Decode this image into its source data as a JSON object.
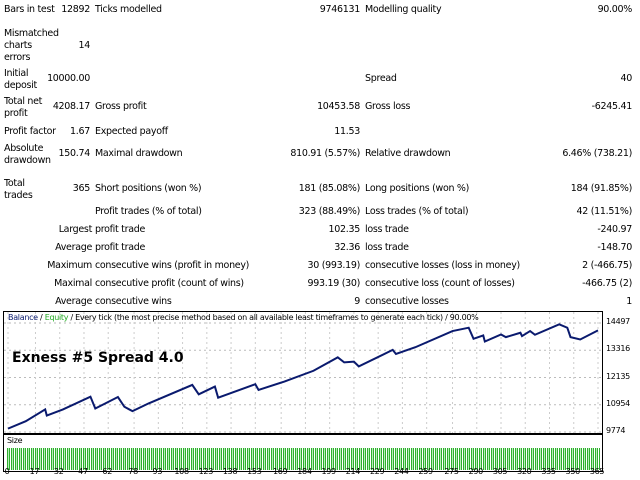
{
  "stats": {
    "bars_in_test": {
      "label": "Bars in test",
      "value": "12892"
    },
    "ticks_modelled": {
      "label": "Ticks modelled",
      "value": "9746131"
    },
    "modelling_quality": {
      "label": "Modelling quality",
      "value": "90.00%"
    },
    "mismatched": {
      "label": "Mismatched charts errors",
      "value": "14"
    },
    "initial_deposit": {
      "label": "Initial deposit",
      "value": "10000.00"
    },
    "spread": {
      "label": "Spread",
      "value": "40"
    },
    "total_net_profit": {
      "label": "Total net profit",
      "value": "4208.17"
    },
    "gross_profit": {
      "label": "Gross profit",
      "value": "10453.58"
    },
    "gross_loss": {
      "label": "Gross loss",
      "value": "-6245.41"
    },
    "profit_factor": {
      "label": "Profit factor",
      "value": "1.67"
    },
    "expected_payoff": {
      "label": "Expected payoff",
      "value": "11.53"
    },
    "absolute_drawdown": {
      "label": "Absolute drawdown",
      "value": "150.74"
    },
    "maximal_drawdown": {
      "label": "Maximal drawdown",
      "value": "810.91 (5.57%)"
    },
    "relative_drawdown": {
      "label": "Relative drawdown",
      "value": "6.46% (738.21)"
    },
    "total_trades": {
      "label": "Total trades",
      "value": "365"
    },
    "short_positions": {
      "label": "Short positions (won %)",
      "value": "181 (85.08%)"
    },
    "long_positions": {
      "label": "Long positions (won %)",
      "value": "184 (91.85%)"
    },
    "profit_trades": {
      "label": "Profit trades (% of total)",
      "value": "323 (88.49%)"
    },
    "loss_trades": {
      "label": "Loss trades (% of total)",
      "value": "42 (11.51%)"
    },
    "largest": {
      "label": "Largest",
      "profit_label": "profit trade",
      "profit": "102.35",
      "loss_label": "loss trade",
      "loss": "-240.97"
    },
    "average": {
      "label": "Average",
      "profit_label": "profit trade",
      "profit": "32.36",
      "loss_label": "loss trade",
      "loss": "-148.70"
    },
    "maximum": {
      "label": "Maximum",
      "profit_label": "consecutive wins (profit in money)",
      "profit": "30 (993.19)",
      "loss_label": "consecutive losses (loss in money)",
      "loss": "2 (-466.75)"
    },
    "maximal": {
      "label": "Maximal",
      "profit_label": "consecutive profit (count of wins)",
      "profit": "993.19 (30)",
      "loss_label": "consecutive loss (count of losses)",
      "loss": "-466.75 (2)"
    },
    "average_consec": {
      "label": "Average",
      "profit_label": "consecutive wins",
      "profit": "9",
      "loss_label": "consecutive losses",
      "loss": "1"
    }
  },
  "chart_data": {
    "type": "line",
    "legend": {
      "balance": "Balance",
      "sep1": " / ",
      "equity": "Equity",
      "rest": " / Every tick (the most precise method based on all available least timeframes to generate each tick) / 90.00%"
    },
    "title": "Exness #5  Spread 4.0",
    "size_label": "Size",
    "colors": {
      "balance": "#0a1a6e",
      "equity": "#22aa22",
      "size": "#2fae2f"
    },
    "y_ticks": [
      "14497",
      "13316",
      "12135",
      "10954",
      "9774"
    ],
    "ylim": [
      9774,
      14497
    ],
    "x_ticks": [
      "0",
      "17",
      "32",
      "47",
      "62",
      "78",
      "93",
      "108",
      "123",
      "138",
      "153",
      "169",
      "184",
      "199",
      "214",
      "229",
      "244",
      "259",
      "275",
      "290",
      "305",
      "320",
      "335",
      "350",
      "365"
    ],
    "xlim": [
      0,
      365
    ],
    "series": [
      {
        "name": "Balance",
        "points": [
          [
            0,
            9920
          ],
          [
            11,
            10241
          ],
          [
            23,
            10751
          ],
          [
            24,
            10488
          ],
          [
            34,
            10751
          ],
          [
            51,
            11305
          ],
          [
            54,
            10794
          ],
          [
            68,
            11290
          ],
          [
            72,
            10867
          ],
          [
            77,
            10678
          ],
          [
            87,
            11013
          ],
          [
            114,
            11815
          ],
          [
            118,
            11407
          ],
          [
            128,
            11742
          ],
          [
            130,
            11261
          ],
          [
            153,
            11844
          ],
          [
            155,
            11596
          ],
          [
            171,
            11961
          ],
          [
            189,
            12427
          ],
          [
            204,
            13010
          ],
          [
            208,
            12791
          ],
          [
            214,
            12821
          ],
          [
            217,
            12617
          ],
          [
            238,
            13331
          ],
          [
            240,
            13156
          ],
          [
            252,
            13447
          ],
          [
            275,
            14147
          ],
          [
            285,
            14293
          ],
          [
            288,
            13812
          ],
          [
            294,
            13958
          ],
          [
            295,
            13695
          ],
          [
            305,
            14001
          ],
          [
            308,
            13885
          ],
          [
            317,
            14074
          ],
          [
            318,
            13929
          ],
          [
            323,
            14147
          ],
          [
            326,
            13987
          ],
          [
            341,
            14439
          ],
          [
            346,
            14293
          ],
          [
            348,
            13885
          ],
          [
            354,
            13783
          ],
          [
            365,
            14176
          ]
        ]
      }
    ]
  }
}
